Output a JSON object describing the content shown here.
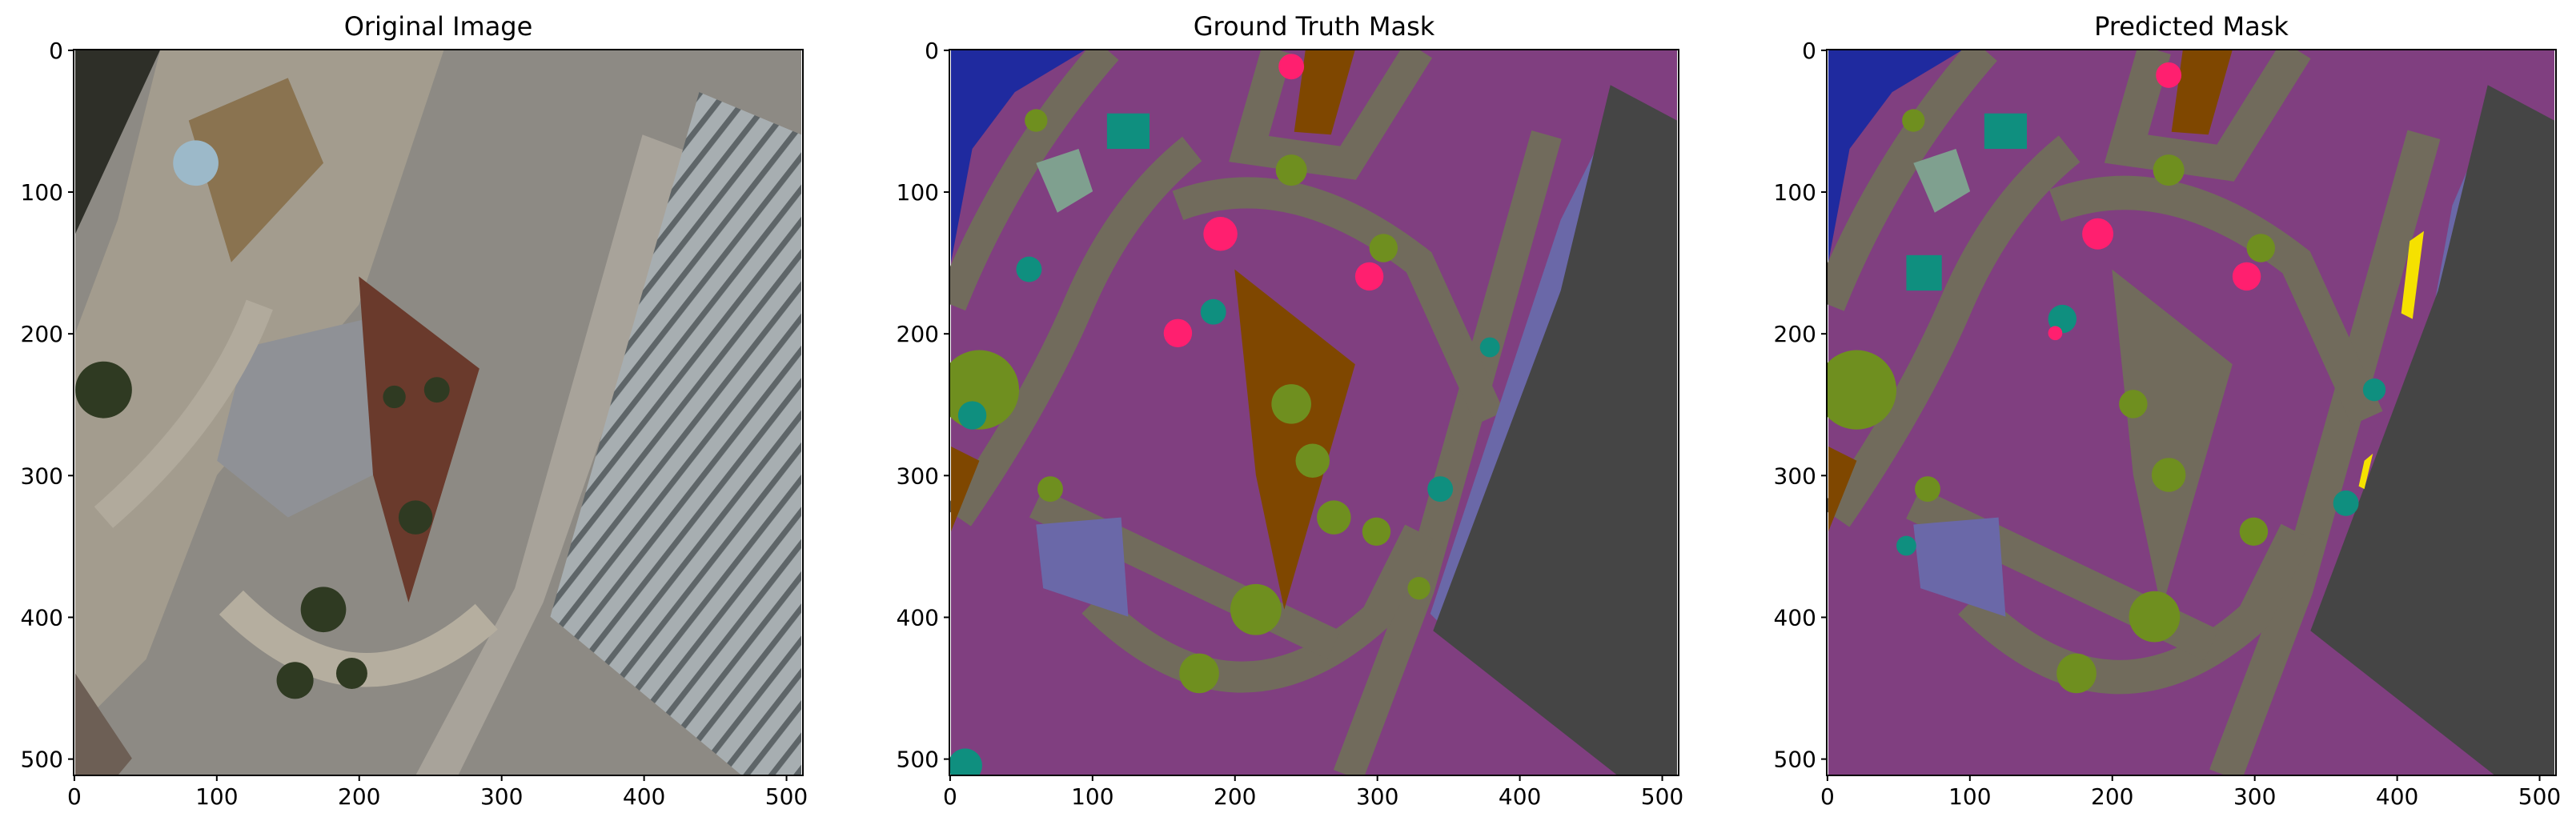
{
  "chart_data": [
    {
      "type": "image",
      "title": "Original Image",
      "xlim": [
        -0.5,
        511.5
      ],
      "ylim": [
        511.5,
        -0.5
      ],
      "xticks": [
        0,
        100,
        200,
        300,
        400,
        500
      ],
      "yticks": [
        0,
        100,
        200,
        300,
        400,
        500
      ],
      "image": "orig"
    },
    {
      "type": "image",
      "title": "Ground Truth Mask",
      "xlim": [
        -0.5,
        511.5
      ],
      "ylim": [
        511.5,
        -0.5
      ],
      "xticks": [
        0,
        100,
        200,
        300,
        400,
        500
      ],
      "yticks": [
        0,
        100,
        200,
        300,
        400,
        500
      ],
      "image": "gt"
    },
    {
      "type": "image",
      "title": "Predicted Mask",
      "xlim": [
        -0.5,
        511.5
      ],
      "ylim": [
        511.5,
        -0.5
      ],
      "xticks": [
        0,
        100,
        200,
        300,
        400,
        500
      ],
      "yticks": [
        0,
        100,
        200,
        300,
        400,
        500
      ],
      "image": "pred"
    }
  ]
}
